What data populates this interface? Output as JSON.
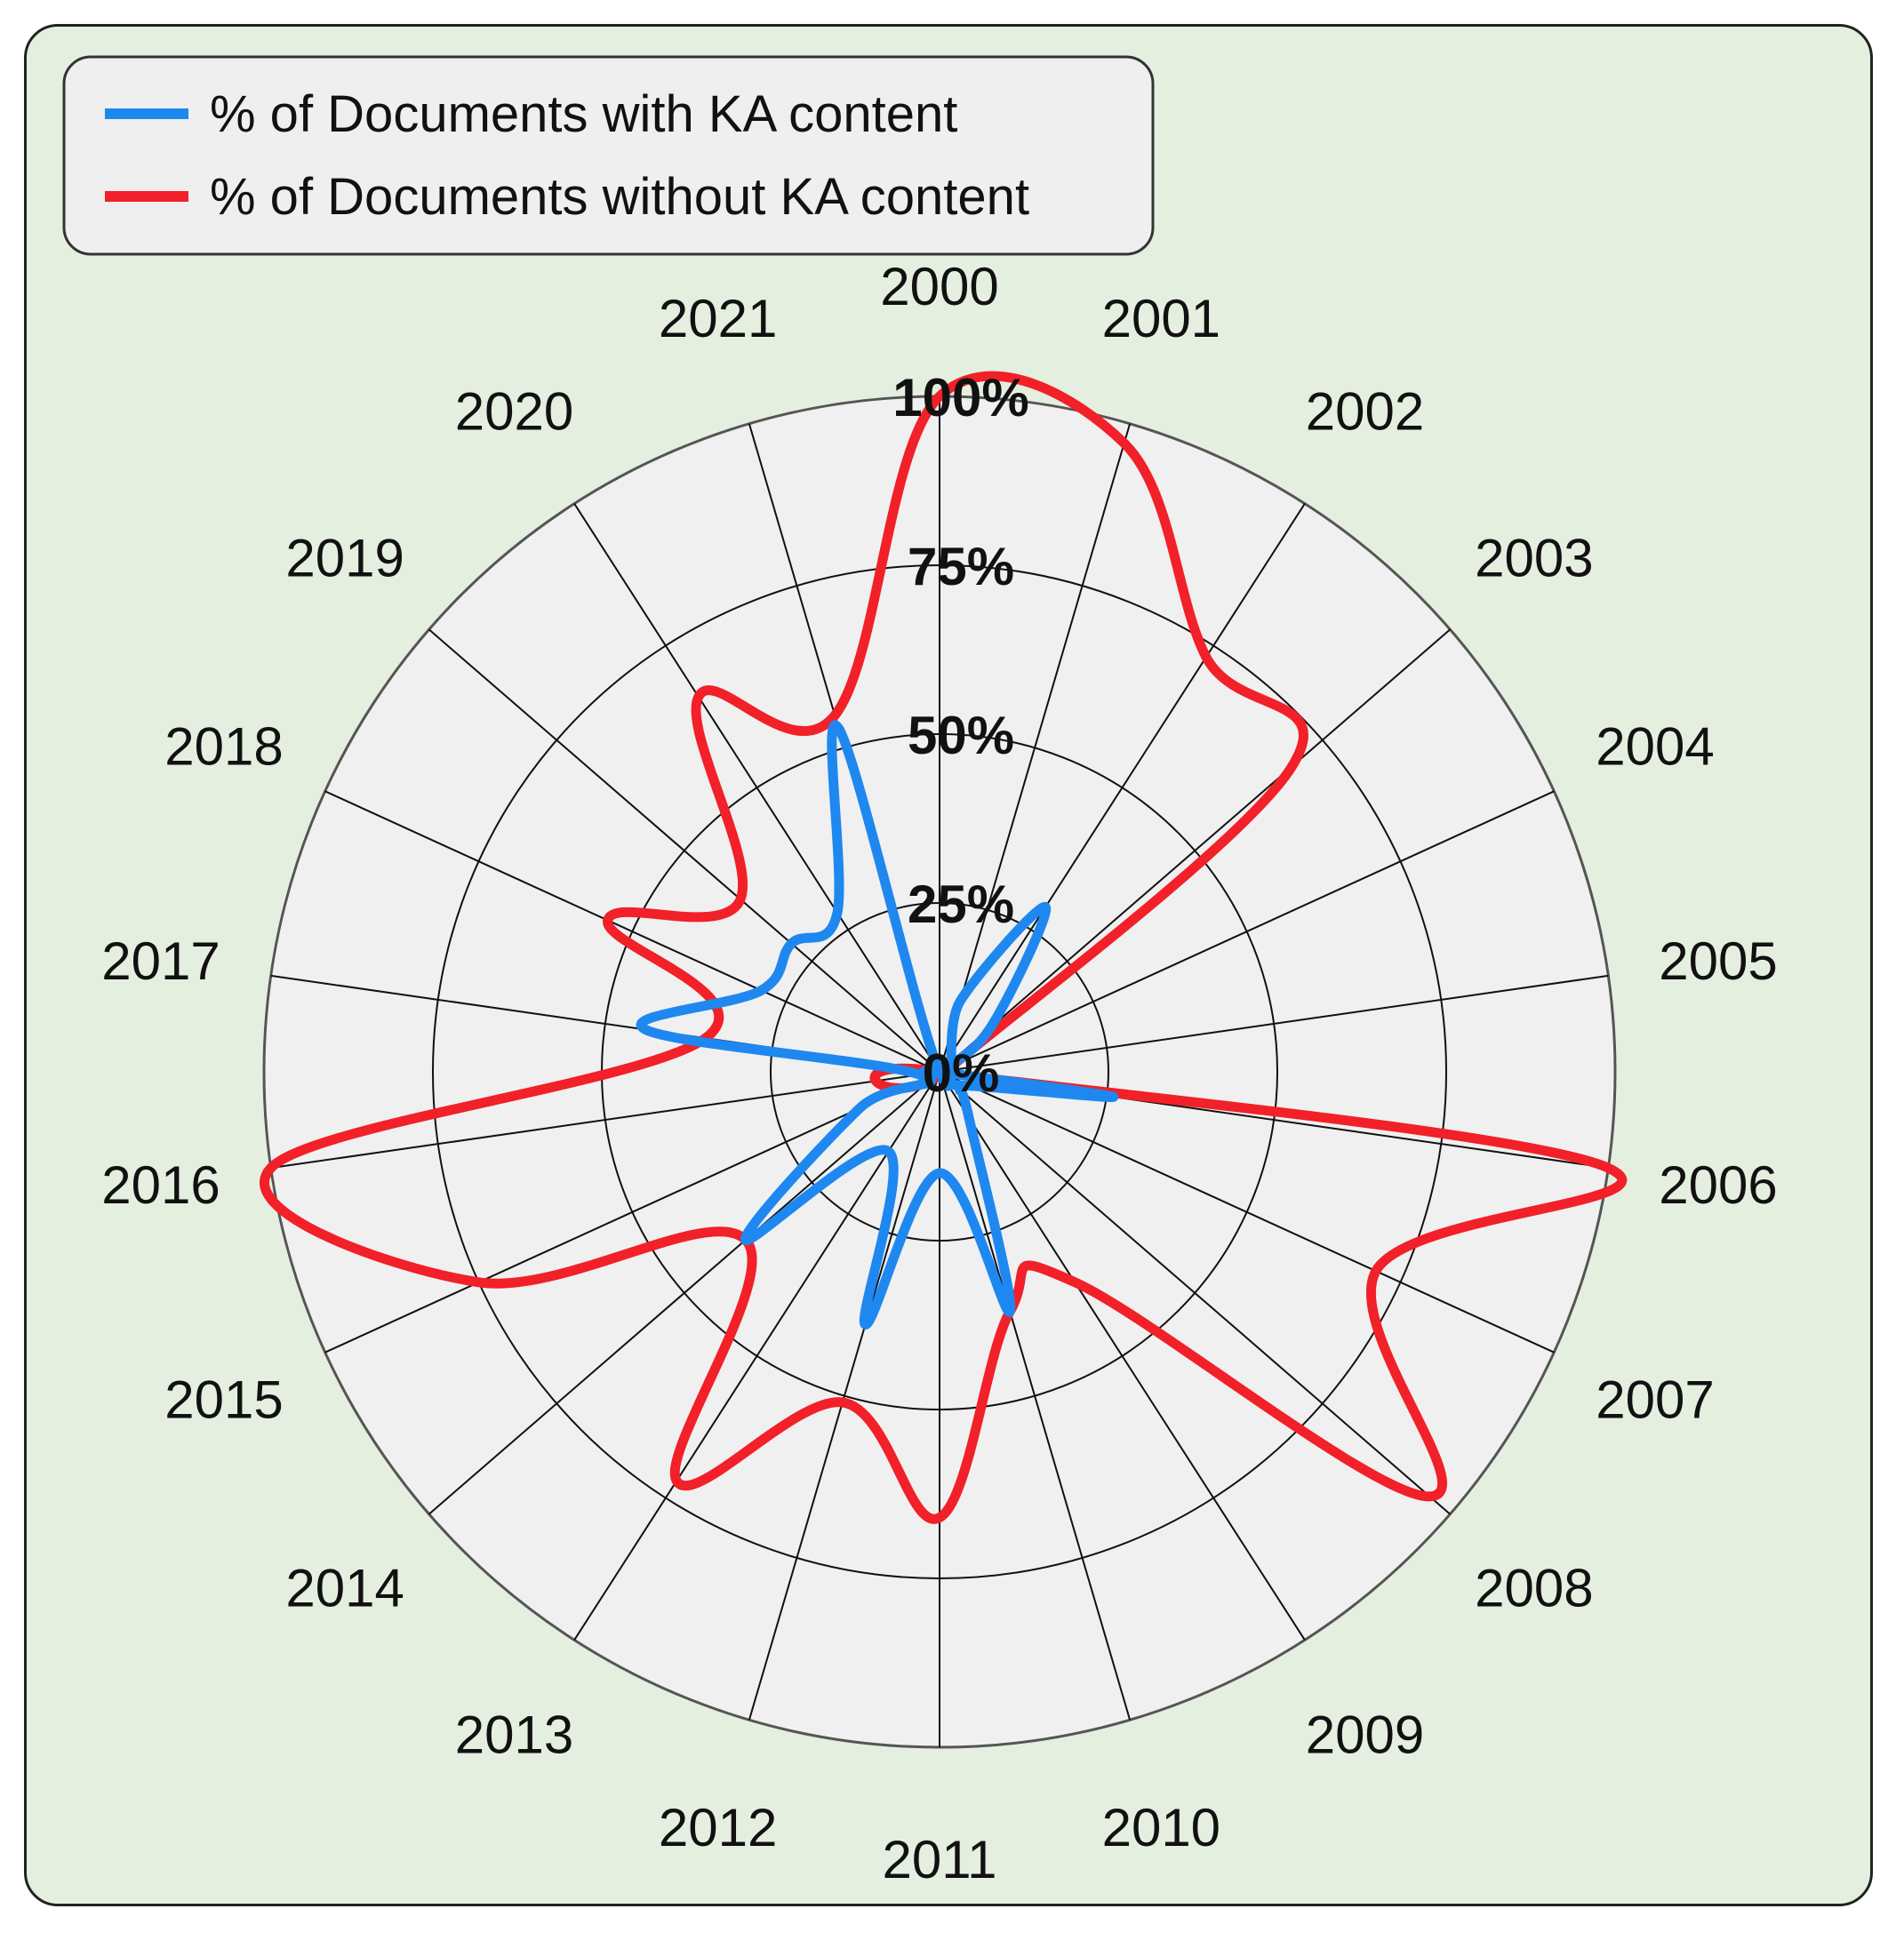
{
  "chart_data": {
    "type": "radar",
    "categories": [
      "2000",
      "2001",
      "2002",
      "2003",
      "2004",
      "2005",
      "2006",
      "2007",
      "2008",
      "2009",
      "2010",
      "2011",
      "2012",
      "2013",
      "2014",
      "2015",
      "2016",
      "2017",
      "2018",
      "2019",
      "2020",
      "2021"
    ],
    "series": [
      {
        "name": "% of Documents with KA content",
        "color": "#1e88f0",
        "values": [
          0,
          11,
          29,
          10,
          0,
          0,
          26,
          5,
          4,
          8,
          37,
          15,
          39,
          14,
          38,
          13,
          3,
          44,
          29,
          29,
          28,
          53
        ]
      },
      {
        "name": "% of Documents without KA content",
        "color": "#f22028",
        "values": [
          100,
          97,
          73,
          69,
          2,
          0,
          100,
          71,
          96,
          37,
          37,
          66,
          51,
          72,
          38,
          75,
          100,
          35,
          54,
          39,
          66,
          55
        ]
      }
    ],
    "radial_ticks": [
      "0%",
      "25%",
      "50%",
      "75%",
      "100%"
    ],
    "rlim": [
      0,
      100
    ],
    "grid": true,
    "legend_position": "top-left"
  }
}
